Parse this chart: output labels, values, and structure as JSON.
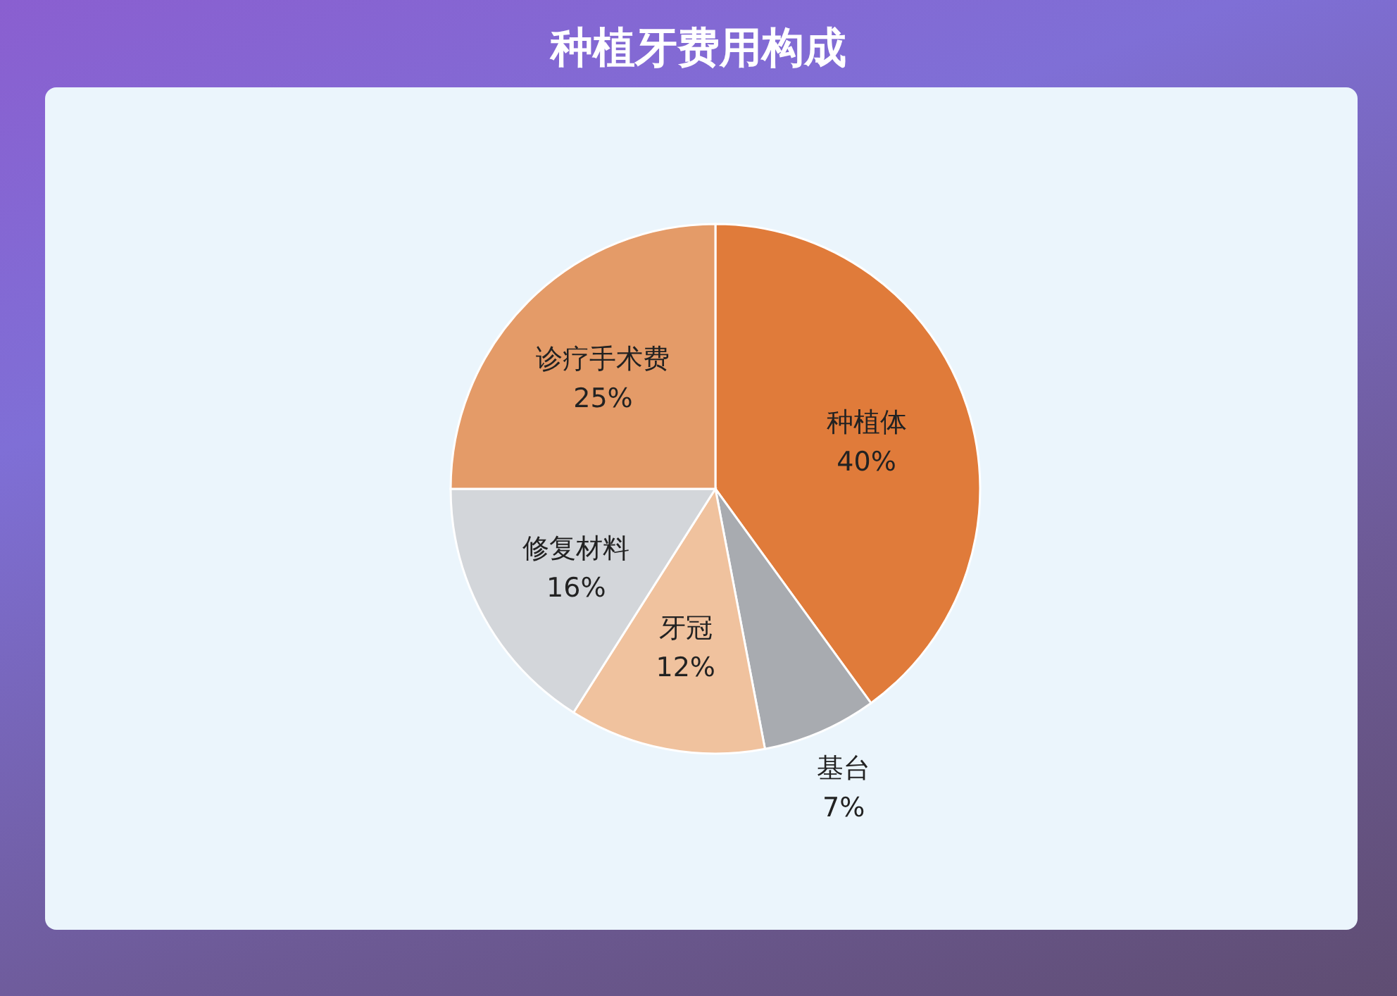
{
  "chart_data": {
    "type": "pie",
    "title": "种植牙费用构成",
    "categories": [
      "种植体",
      "基台",
      "牙冠",
      "修复材料",
      "诊疗手术费"
    ],
    "values": [
      40,
      7,
      12,
      16,
      25
    ],
    "value_labels": [
      "40%",
      "7%",
      "12%",
      "16%",
      "25%"
    ],
    "colors": [
      "#e07b3a",
      "#a8abb0",
      "#f0c29e",
      "#d3d6da",
      "#e49b68"
    ]
  }
}
